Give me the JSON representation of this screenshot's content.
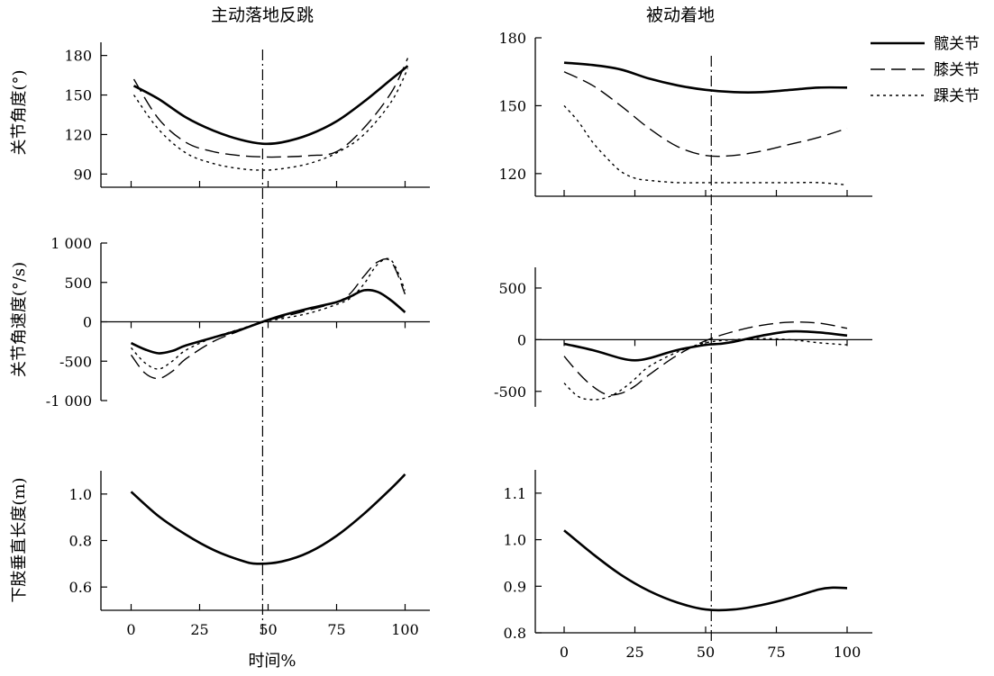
{
  "legend": {
    "items": [
      {
        "label": "髋关节",
        "dash": "none",
        "width": 2.6
      },
      {
        "label": "膝关节",
        "dash": "16,7",
        "width": 1.4
      },
      {
        "label": "踝关节",
        "dash": "3,4",
        "width": 1.4
      }
    ],
    "placement": "top-right"
  },
  "xlabel": "时间%",
  "chart_data": [
    {
      "id": "angle-active",
      "type": "line",
      "title": "主动落地反跳",
      "ylabel": "关节角度(°)",
      "xlim": [
        0,
        100
      ],
      "ylim": [
        80,
        190
      ],
      "x_ticks": [
        0,
        25,
        50,
        75,
        100
      ],
      "x_tick_labels_shown": false,
      "y_ticks": [
        90,
        120,
        150,
        180
      ],
      "y_tick_labels": [
        "90",
        "120",
        "150",
        "180"
      ],
      "vline_x": 48,
      "zero_line": false,
      "series": [
        {
          "name": "髋关节",
          "x": [
            1,
            10,
            20,
            30,
            40,
            48,
            55,
            65,
            75,
            85,
            95,
            101
          ],
          "y": [
            157,
            147,
            133,
            123,
            116,
            113,
            114,
            120,
            130,
            145,
            162,
            172
          ]
        },
        {
          "name": "膝关节",
          "x": [
            1,
            10,
            20,
            30,
            40,
            48,
            55,
            65,
            75,
            85,
            95,
            101
          ],
          "y": [
            162,
            132,
            114,
            107,
            104,
            103,
            103,
            104,
            107,
            125,
            152,
            178
          ]
        },
        {
          "name": "踝关节",
          "x": [
            1,
            10,
            20,
            30,
            40,
            48,
            55,
            65,
            75,
            85,
            95,
            101
          ],
          "y": [
            150,
            124,
            106,
            98,
            94,
            93,
            94,
            98,
            106,
            120,
            145,
            170
          ]
        }
      ]
    },
    {
      "id": "angle-passive",
      "type": "line",
      "title": "被动着地",
      "ylabel": "",
      "xlim": [
        0,
        100
      ],
      "ylim": [
        110,
        180
      ],
      "x_ticks": [
        0,
        25,
        50,
        75,
        100
      ],
      "x_tick_labels_shown": false,
      "y_ticks": [
        120,
        150,
        180
      ],
      "y_tick_labels": [
        "120",
        "150",
        "180"
      ],
      "vline_x": 52,
      "zero_line": false,
      "series": [
        {
          "name": "髋关节",
          "x": [
            0,
            10,
            20,
            30,
            40,
            50,
            60,
            70,
            80,
            90,
            100
          ],
          "y": [
            169,
            168,
            166,
            162,
            159,
            157,
            156,
            156,
            157,
            158,
            158
          ]
        },
        {
          "name": "膝关节",
          "x": [
            0,
            10,
            20,
            30,
            40,
            50,
            60,
            70,
            80,
            90,
            100
          ],
          "y": [
            165,
            159,
            150,
            140,
            132,
            128,
            128,
            130,
            133,
            136,
            140
          ]
        },
        {
          "name": "踝关节",
          "x": [
            0,
            5,
            10,
            15,
            20,
            25,
            30,
            40,
            50,
            60,
            70,
            80,
            90,
            100
          ],
          "y": [
            150,
            143,
            134,
            127,
            121,
            118,
            117,
            116,
            116,
            116,
            116,
            116,
            116,
            115
          ]
        }
      ]
    },
    {
      "id": "velocity-active",
      "type": "line",
      "title": "",
      "ylabel": "关节角速度(°/s)",
      "xlim": [
        0,
        100
      ],
      "ylim": [
        -1000,
        1000
      ],
      "x_ticks": [
        0,
        25,
        50,
        75,
        100
      ],
      "x_tick_labels_shown": false,
      "y_ticks": [
        -1000,
        -500,
        0,
        500,
        1000
      ],
      "y_tick_labels": [
        "-1 000",
        "-500",
        "0",
        "500",
        "1 000"
      ],
      "vline_x": 48,
      "zero_line": true,
      "series": [
        {
          "name": "髋关节",
          "x": [
            0,
            5,
            10,
            15,
            20,
            30,
            40,
            48,
            55,
            65,
            75,
            80,
            85,
            90,
            95,
            100
          ],
          "y": [
            -270,
            -350,
            -400,
            -370,
            -300,
            -200,
            -100,
            0,
            80,
            170,
            250,
            320,
            400,
            380,
            270,
            120
          ]
        },
        {
          "name": "膝关节",
          "x": [
            0,
            5,
            10,
            15,
            20,
            30,
            40,
            48,
            55,
            65,
            75,
            80,
            85,
            90,
            95,
            100
          ],
          "y": [
            -420,
            -650,
            -720,
            -630,
            -470,
            -250,
            -110,
            0,
            60,
            150,
            250,
            360,
            580,
            760,
            760,
            350
          ]
        },
        {
          "name": "踝关节",
          "x": [
            0,
            5,
            10,
            15,
            20,
            30,
            40,
            48,
            55,
            65,
            75,
            80,
            85,
            90,
            95,
            100
          ],
          "y": [
            -330,
            -520,
            -600,
            -500,
            -360,
            -200,
            -90,
            0,
            40,
            110,
            220,
            300,
            480,
            730,
            780,
            400
          ]
        }
      ]
    },
    {
      "id": "velocity-passive",
      "type": "line",
      "title": "",
      "ylabel": "",
      "xlim": [
        0,
        100
      ],
      "ylim": [
        -650,
        700
      ],
      "x_ticks": [
        0,
        25,
        50,
        75,
        100
      ],
      "x_tick_labels_shown": false,
      "y_ticks": [
        -500,
        0,
        500
      ],
      "y_tick_labels": [
        "-500",
        "0",
        "500"
      ],
      "vline_x": 52,
      "zero_line": true,
      "series": [
        {
          "name": "髋关节",
          "x": [
            0,
            10,
            20,
            25,
            30,
            40,
            50,
            55,
            60,
            70,
            80,
            90,
            100
          ],
          "y": [
            -40,
            -100,
            -180,
            -200,
            -180,
            -100,
            -50,
            -40,
            -20,
            40,
            80,
            70,
            40
          ]
        },
        {
          "name": "膝关节",
          "x": [
            0,
            5,
            10,
            15,
            20,
            25,
            30,
            40,
            50,
            60,
            70,
            80,
            90,
            100
          ],
          "y": [
            -160,
            -320,
            -450,
            -530,
            -520,
            -450,
            -340,
            -150,
            -10,
            80,
            140,
            170,
            160,
            110
          ]
        },
        {
          "name": "踝关节",
          "x": [
            0,
            5,
            10,
            15,
            20,
            25,
            30,
            40,
            50,
            60,
            70,
            80,
            90,
            100
          ],
          "y": [
            -420,
            -550,
            -580,
            -560,
            -490,
            -380,
            -260,
            -120,
            -30,
            0,
            10,
            0,
            -30,
            -50
          ]
        }
      ]
    },
    {
      "id": "length-active",
      "type": "line",
      "title": "",
      "ylabel": "下肢垂直长度(m)",
      "xlim": [
        0,
        100
      ],
      "ylim": [
        0.5,
        1.1
      ],
      "x_ticks": [
        0,
        25,
        50,
        75,
        100
      ],
      "x_tick_labels_shown": true,
      "x_tick_labels": [
        "0",
        "25",
        "50",
        "75",
        "100"
      ],
      "y_ticks": [
        0.6,
        0.8,
        1.0
      ],
      "y_tick_labels": [
        "0.6",
        "0.8",
        "1.0"
      ],
      "vline_x": 48,
      "zero_line": false,
      "series": [
        {
          "name": "髋关节",
          "x": [
            0,
            10,
            20,
            30,
            40,
            46,
            55,
            65,
            75,
            85,
            95,
            100
          ],
          "y": [
            1.01,
            0.905,
            0.825,
            0.76,
            0.715,
            0.7,
            0.71,
            0.75,
            0.82,
            0.915,
            1.025,
            1.085
          ]
        }
      ]
    },
    {
      "id": "length-passive",
      "type": "line",
      "title": "",
      "ylabel": "",
      "xlim": [
        0,
        100
      ],
      "ylim": [
        0.8,
        1.15
      ],
      "x_ticks": [
        0,
        25,
        50,
        75,
        100
      ],
      "x_tick_labels_shown": true,
      "x_tick_labels": [
        "0",
        "25",
        "50",
        "75",
        "100"
      ],
      "y_ticks": [
        0.8,
        0.9,
        1.0,
        1.1
      ],
      "y_tick_labels": [
        "0.8",
        "0.9",
        "1.0",
        "1.1"
      ],
      "vline_x": 52,
      "zero_line": false,
      "series": [
        {
          "name": "髋关节",
          "x": [
            0,
            10,
            20,
            30,
            40,
            50,
            60,
            70,
            80,
            90,
            95,
            100
          ],
          "y": [
            1.02,
            0.97,
            0.925,
            0.89,
            0.865,
            0.85,
            0.85,
            0.86,
            0.875,
            0.893,
            0.897,
            0.896
          ]
        }
      ]
    }
  ]
}
